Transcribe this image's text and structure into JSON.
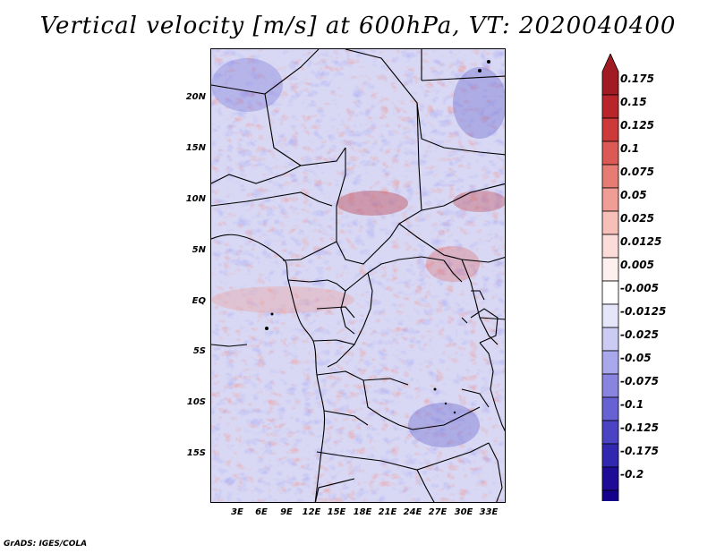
{
  "title": "Vertical velocity [m/s] at 600hPa, VT: 2020040400",
  "credit": "GrADS: IGES/COLA",
  "lat_labels": [
    "20N",
    "15N",
    "10N",
    "5N",
    "EQ",
    "5S",
    "10S",
    "15S"
  ],
  "lon_labels": [
    "3E",
    "6E",
    "9E",
    "12E",
    "15E",
    "18E",
    "21E",
    "24E",
    "27E",
    "30E",
    "33E"
  ],
  "colorbar": {
    "levels": [
      "0.175",
      "0.15",
      "0.125",
      "0.1",
      "0.075",
      "0.05",
      "0.025",
      "0.0125",
      "0.005",
      "-0.005",
      "-0.0125",
      "-0.025",
      "-0.05",
      "-0.075",
      "-0.1",
      "-0.125",
      "-0.175",
      "-0.2"
    ],
    "colors": [
      "#a01c22",
      "#b8262c",
      "#cc3a3a",
      "#dc5a55",
      "#e67c74",
      "#ef9d95",
      "#f6bfb8",
      "#fbdcd8",
      "#fdf0ee",
      "#ffffff",
      "#e6e6fa",
      "#cbcbf4",
      "#aaa8ec",
      "#8884e0",
      "#6662d4",
      "#4a44c4",
      "#3228b0",
      "#1e0c96",
      "#14008a"
    ]
  }
}
